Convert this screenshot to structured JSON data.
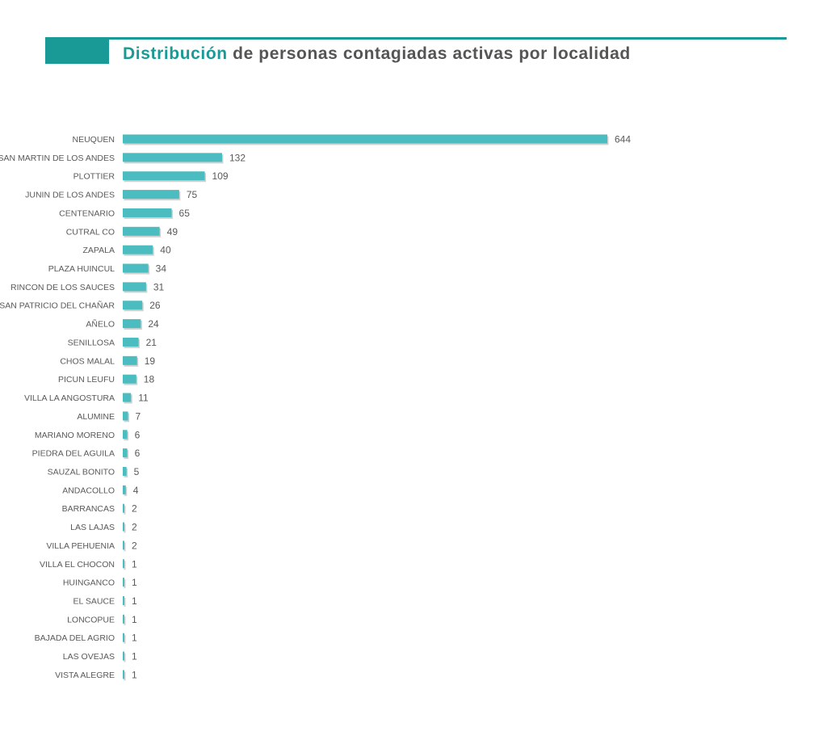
{
  "header": {
    "title_accent": "Distribución",
    "title_rest": " de personas contagiadas activas por localidad"
  },
  "colors": {
    "accent": "#1a9a96",
    "bar": "#4bbcc0",
    "bar_shadow": "#9a9a9a",
    "title_text": "#555555",
    "label_text": "#595959"
  },
  "chart_data": {
    "type": "bar",
    "orientation": "horizontal",
    "categories": [
      "NEUQUEN",
      "SAN MARTIN DE LOS ANDES",
      "PLOTTIER",
      "JUNIN DE LOS ANDES",
      "CENTENARIO",
      "CUTRAL CO",
      "ZAPALA",
      "PLAZA HUINCUL",
      "RINCON DE LOS SAUCES",
      "SAN PATRICIO DEL CHAÑAR",
      "AÑELO",
      "SENILLOSA",
      "CHOS MALAL",
      "PICUN LEUFU",
      "VILLA LA ANGOSTURA",
      "ALUMINE",
      "MARIANO MORENO",
      "PIEDRA DEL AGUILA",
      "SAUZAL BONITO",
      "ANDACOLLO",
      "BARRANCAS",
      "LAS LAJAS",
      "VILLA PEHUENIA",
      "VILLA EL CHOCON",
      "HUINGANCO",
      "EL SAUCE",
      "LONCOPUE",
      "BAJADA DEL AGRIO",
      "LAS OVEJAS",
      "VISTA ALEGRE"
    ],
    "values": [
      644,
      132,
      109,
      75,
      65,
      49,
      40,
      34,
      31,
      26,
      24,
      21,
      19,
      18,
      11,
      7,
      6,
      6,
      5,
      4,
      2,
      2,
      2,
      1,
      1,
      1,
      1,
      1,
      1,
      1
    ],
    "data_labels": true,
    "xlim": [
      0,
      644
    ],
    "grid": false,
    "legend": "none"
  }
}
